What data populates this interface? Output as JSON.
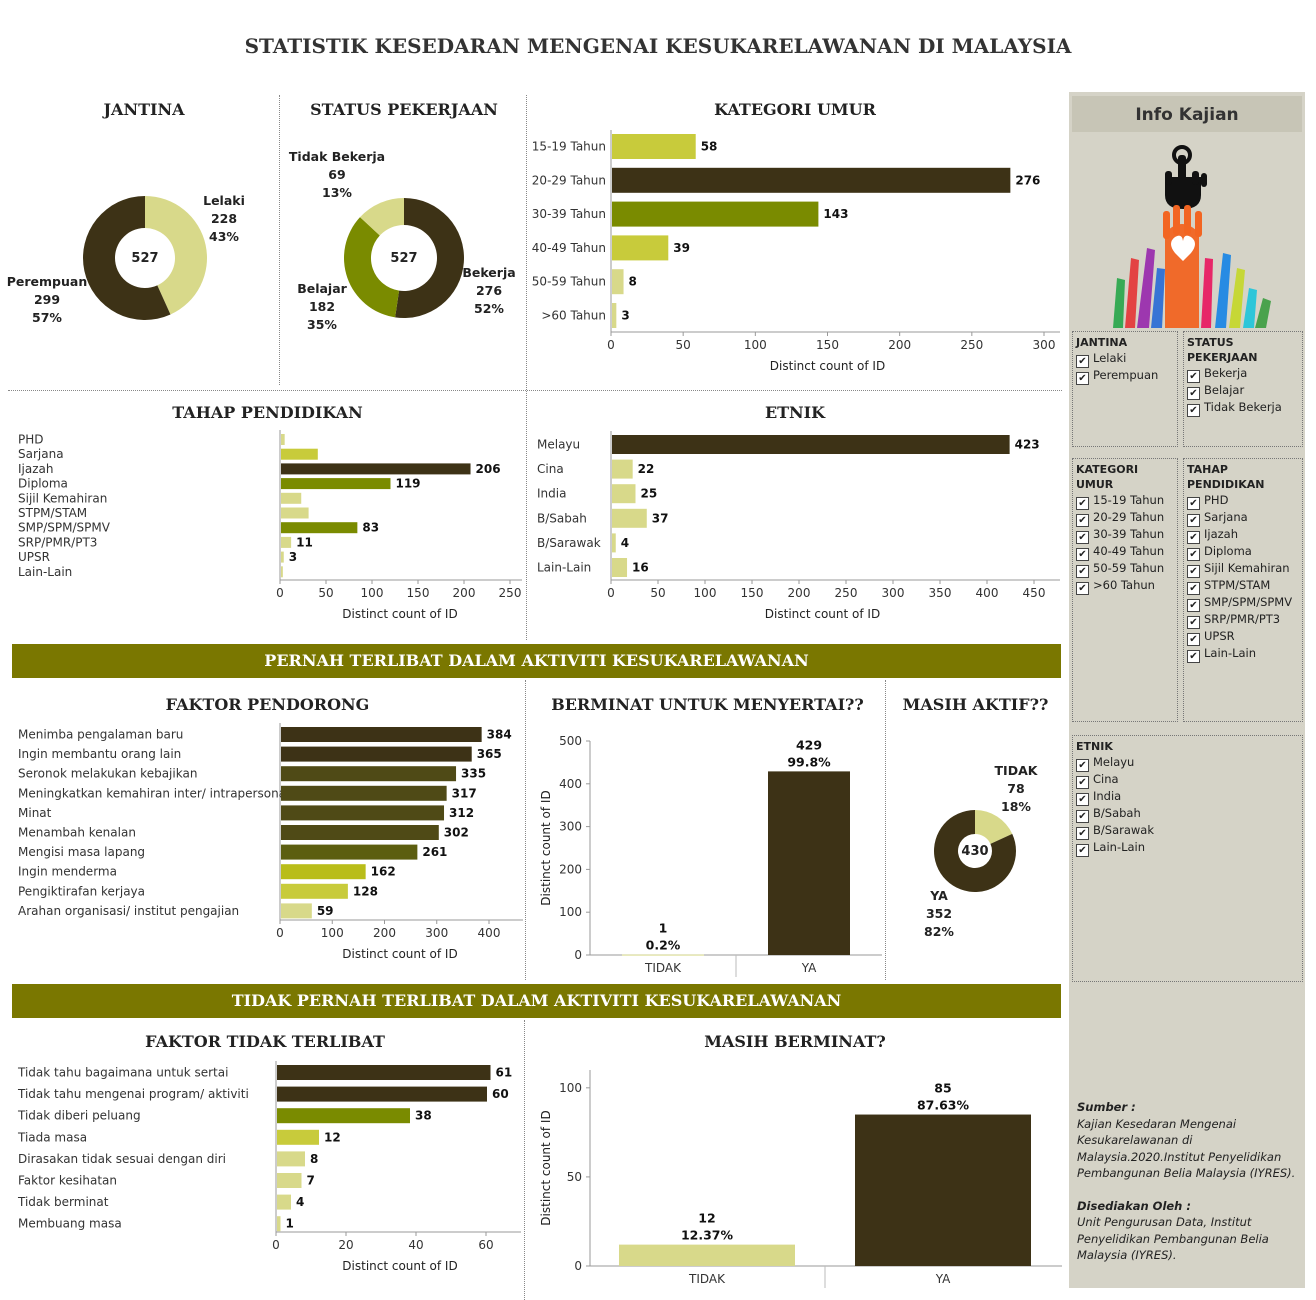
{
  "title": "STATISTIK KESEDARAN MENGENAI KESUKARELAWANAN DI MALAYSIA",
  "colors": {
    "dark": "#3d3216",
    "olive": "#7a8b00",
    "lime": "#c8cb3b",
    "pale": "#d8d98a",
    "banner": "#7a7700",
    "sidebar": "#d5d3c7"
  },
  "banners": {
    "pernah": "PERNAH TERLIBAT DALAM AKTIVITI KESUKARELAWANAN",
    "tidak_pernah": "TIDAK PERNAH TERLIBAT DALAM AKTIVITI KESUKARELAWANAN"
  },
  "axis_label": "Distinct count of ID",
  "chart_data": [
    {
      "id": "jantina",
      "type": "pie",
      "title": "JANTINA",
      "total": 527,
      "slices": [
        {
          "label": "Lelaki",
          "value": 228,
          "pct": "43%",
          "color": "#d8d98a"
        },
        {
          "label": "Perempuan",
          "value": 299,
          "pct": "57%",
          "color": "#3d3216"
        }
      ]
    },
    {
      "id": "status",
      "type": "pie",
      "title": "STATUS PEKERJAAN",
      "total": 527,
      "slices": [
        {
          "label": "Bekerja",
          "value": 276,
          "pct": "52%",
          "color": "#3d3216"
        },
        {
          "label": "Belajar",
          "value": 182,
          "pct": "35%",
          "color": "#7a8b00"
        },
        {
          "label": "Tidak Bekerja",
          "value": 69,
          "pct": "13%",
          "color": "#d8d98a"
        }
      ]
    },
    {
      "id": "umur",
      "type": "bar",
      "title": "KATEGORI UMUR",
      "xlabel": "Distinct count of ID",
      "xlim": [
        0,
        300
      ],
      "ticks": [
        0,
        50,
        100,
        150,
        200,
        250,
        300
      ],
      "categories": [
        "15-19 Tahun",
        "20-29 Tahun",
        "30-39 Tahun",
        "40-49 Tahun",
        "50-59 Tahun",
        ">60 Tahun"
      ],
      "values": [
        58,
        276,
        143,
        39,
        8,
        3
      ],
      "colors": [
        "#c8cb3b",
        "#3d3216",
        "#7a8b00",
        "#c8cb3b",
        "#d8d98a",
        "#d8d98a"
      ],
      "labels": [
        "58",
        "276",
        "143",
        "39",
        "8",
        "3"
      ]
    },
    {
      "id": "pendidikan",
      "type": "bar",
      "title": "TAHAP PENDIDIKAN",
      "xlabel": "Distinct count of ID",
      "xlim": [
        0,
        250
      ],
      "ticks": [
        0,
        50,
        100,
        150,
        200,
        250
      ],
      "categories": [
        "PHD",
        "Sarjana",
        "Ijazah",
        "Diploma",
        "Sijil Kemahiran",
        "STPM/STAM",
        "SMP/SPM/SPMV",
        "SRP/PMR/PT3",
        "UPSR",
        "Lain-Lain"
      ],
      "values": [
        4,
        40,
        206,
        119,
        22,
        30,
        83,
        11,
        3,
        2
      ],
      "colors": [
        "#d8d98a",
        "#c8cb3b",
        "#3d3216",
        "#7a8b00",
        "#d8d98a",
        "#d8d98a",
        "#7a8b00",
        "#d8d98a",
        "#d8d98a",
        "#d8d98a"
      ],
      "labels": [
        "",
        "",
        "206",
        "119",
        "",
        "",
        "83",
        "11",
        "3",
        ""
      ]
    },
    {
      "id": "etnik",
      "type": "bar",
      "title": "ETNIK",
      "xlabel": "Distinct count of ID",
      "xlim": [
        0,
        450
      ],
      "ticks": [
        0,
        50,
        100,
        150,
        200,
        250,
        300,
        350,
        400,
        450
      ],
      "categories": [
        "Melayu",
        "Cina",
        "India",
        "B/Sabah",
        "B/Sarawak",
        "Lain-Lain"
      ],
      "values": [
        423,
        22,
        25,
        37,
        4,
        16
      ],
      "colors": [
        "#3d3216",
        "#d8d98a",
        "#d8d98a",
        "#d8d98a",
        "#d8d98a",
        "#d8d98a"
      ],
      "labels": [
        "423",
        "22",
        "25",
        "37",
        "4",
        "16"
      ]
    },
    {
      "id": "pendorong",
      "type": "bar",
      "title": "FAKTOR PENDORONG",
      "xlabel": "Distinct count of ID",
      "xlim": [
        0,
        400
      ],
      "ticks": [
        0,
        100,
        200,
        300,
        400
      ],
      "categories": [
        "Menimba pengalaman baru",
        "Ingin membantu orang lain",
        "Seronok melakukan kebajikan",
        "Meningkatkan kemahiran inter/ intrapersonal",
        "Minat",
        "Menambah kenalan",
        "Mengisi masa lapang",
        "Ingin menderma",
        "Pengiktirafan kerjaya",
        "Arahan organisasi/ institut pengajian"
      ],
      "values": [
        384,
        365,
        335,
        317,
        312,
        302,
        261,
        162,
        128,
        59
      ],
      "colors": [
        "#3d3216",
        "#3d3216",
        "#4f4a16",
        "#4f4a16",
        "#4f4a16",
        "#4f4a16",
        "#5c5e10",
        "#b9bd1a",
        "#c8cb3b",
        "#d8d98a"
      ],
      "labels": [
        "384",
        "365",
        "335",
        "317",
        "312",
        "302",
        "261",
        "162",
        "128",
        "59"
      ]
    },
    {
      "id": "berminat",
      "type": "bar",
      "orientation": "vertical",
      "title": "BERMINAT UNTUK MENYERTAI??",
      "ylabel": "Distinct count of ID",
      "ylim": [
        0,
        500
      ],
      "ticks": [
        0,
        100,
        200,
        300,
        400,
        500
      ],
      "categories": [
        "TIDAK",
        "YA"
      ],
      "values": [
        1,
        429
      ],
      "pct": [
        "0.2%",
        "99.8%"
      ],
      "colors": [
        "#d8d98a",
        "#3d3216"
      ]
    },
    {
      "id": "aktif",
      "type": "pie",
      "title": "MASIH AKTIF??",
      "total": 430,
      "slices": [
        {
          "label": "TIDAK",
          "value": 78,
          "pct": "18%",
          "color": "#d8d98a"
        },
        {
          "label": "YA",
          "value": 352,
          "pct": "82%",
          "color": "#3d3216"
        }
      ]
    },
    {
      "id": "tidakterlibat",
      "type": "bar",
      "title": "FAKTOR TIDAK TERLIBAT",
      "xlabel": "Distinct count of ID",
      "xlim": [
        0,
        70
      ],
      "ticks": [
        0,
        20,
        40,
        60
      ],
      "categories": [
        "Tidak tahu bagaimana untuk sertai",
        "Tidak tahu mengenai program/ aktiviti",
        "Tidak diberi peluang",
        "Tiada masa",
        "Dirasakan tidak sesuai dengan diri",
        "Faktor kesihatan",
        "Tidak berminat",
        "Membuang masa"
      ],
      "values": [
        61,
        60,
        38,
        12,
        8,
        7,
        4,
        1
      ],
      "colors": [
        "#3d3216",
        "#3d3216",
        "#7a8b00",
        "#c8cb3b",
        "#d8d98a",
        "#d8d98a",
        "#d8d98a",
        "#d8d98a"
      ],
      "labels": [
        "61",
        "60",
        "38",
        "12",
        "8",
        "7",
        "4",
        "1"
      ]
    },
    {
      "id": "masihberminat",
      "type": "bar",
      "orientation": "vertical",
      "title": "MASIH BERMINAT?",
      "ylabel": "Distinct count of ID",
      "ylim": [
        0,
        110
      ],
      "ticks": [
        0,
        50,
        100
      ],
      "categories": [
        "TIDAK",
        "YA"
      ],
      "values": [
        12,
        85
      ],
      "pct": [
        "12.37%",
        "87.63%"
      ],
      "colors": [
        "#d8d98a",
        "#3d3216"
      ]
    }
  ],
  "sidebar": {
    "heading": "Info Kajian",
    "filters": {
      "jantina": {
        "title": "JANTINA",
        "items": [
          "Lelaki",
          "Perempuan"
        ]
      },
      "status": {
        "title": "STATUS PEKERJAAN",
        "items": [
          "Bekerja",
          "Belajar",
          "Tidak Bekerja"
        ]
      },
      "umur": {
        "title": "KATEGORI UMUR",
        "items": [
          "15-19 Tahun",
          "20-29 Tahun",
          "30-39 Tahun",
          "40-49 Tahun",
          "50-59 Tahun",
          ">60 Tahun"
        ]
      },
      "pendidikan": {
        "title": "TAHAP PENDIDIKAN",
        "items": [
          "PHD",
          "Sarjana",
          "Ijazah",
          "Diploma",
          "Sijil Kemahiran",
          "STPM/STAM",
          "SMP/SPM/SPMV",
          "SRP/PMR/PT3",
          "UPSR",
          "Lain-Lain"
        ]
      },
      "etnik": {
        "title": "ETNIK",
        "items": [
          "Melayu",
          "Cina",
          "India",
          "B/Sabah",
          "B/Sarawak",
          "Lain-Lain"
        ]
      }
    },
    "source_heading": "Sumber :",
    "source_text": "Kajian Kesedaran Mengenai Kesukarelawanan di Malaysia.2020.Institut Penyelidikan Pembangunan Belia Malaysia (IYRES).",
    "prepared_heading": "Disediakan Oleh :",
    "prepared_text": "Unit Pengurusan Data, Institut Penyelidikan Pembangunan Belia Malaysia (IYRES)."
  }
}
